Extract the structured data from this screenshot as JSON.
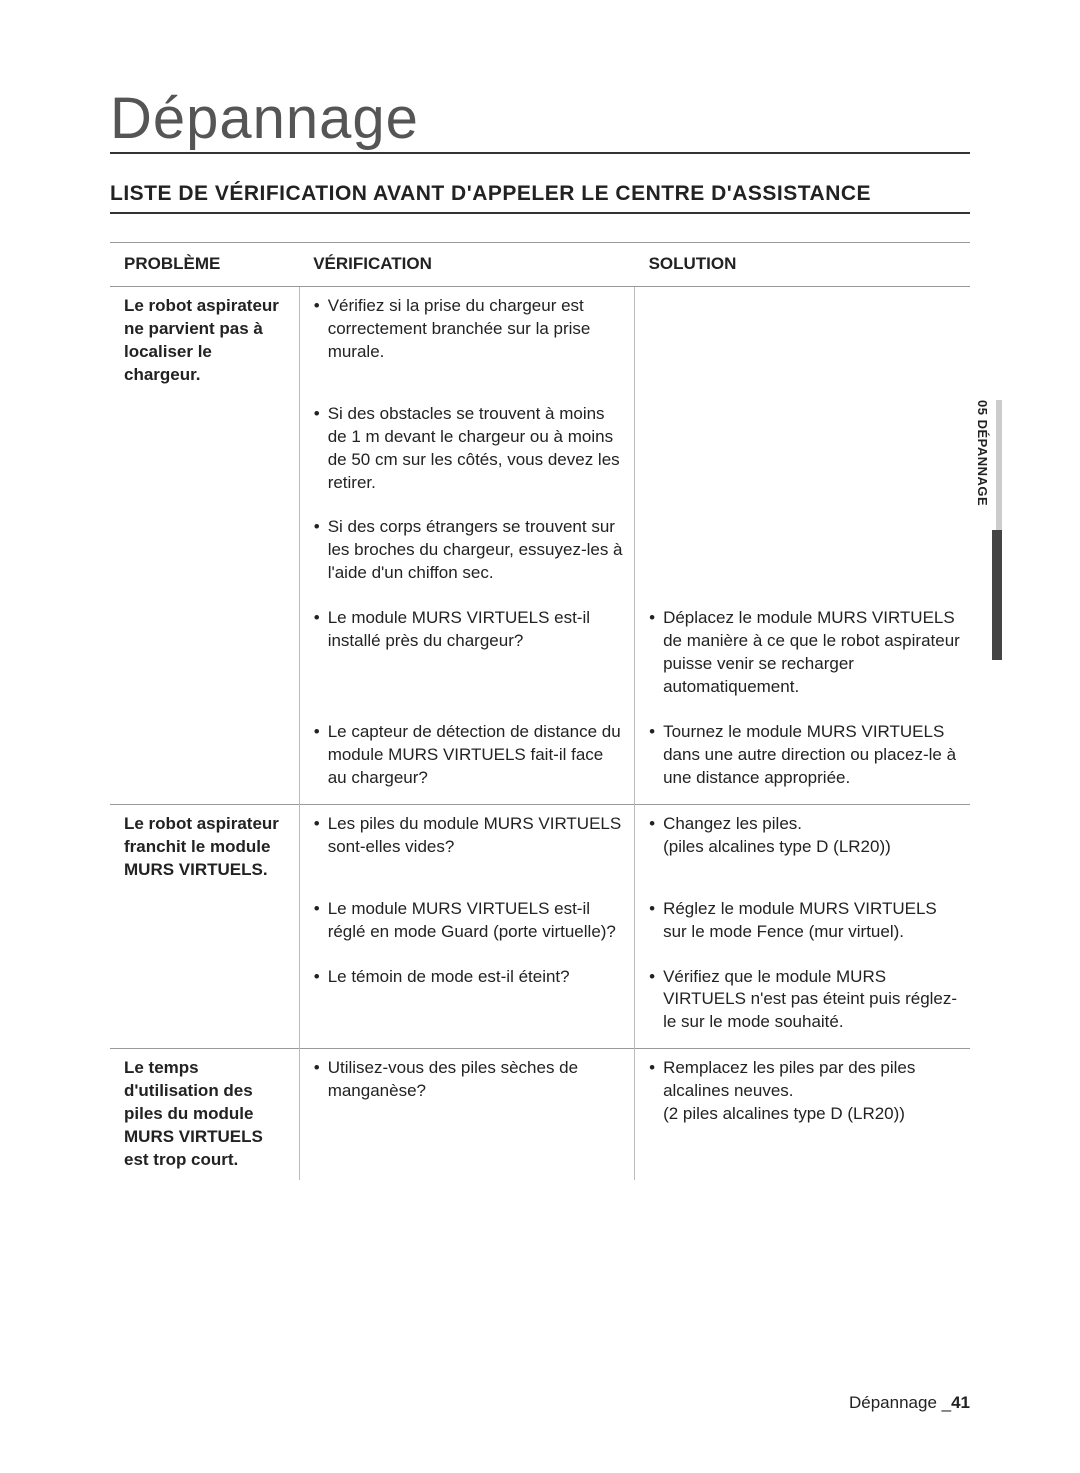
{
  "title": "Dépannage",
  "sub_heading": "LISTE DE VÉRIFICATION AVANT D'APPELER LE CENTRE D'ASSISTANCE",
  "side_tab": "05 DÉPANNAGE",
  "footer_label": "Dépannage _",
  "footer_page": "41",
  "columns": {
    "problem": "PROBLÈME",
    "verification": "VÉRIFICATION",
    "solution": "SOLUTION"
  },
  "rows": [
    {
      "problem": "Le robot aspirateur ne parvient pas à localiser le chargeur.",
      "verification": "Vérifiez si la prise du chargeur est correctement branchée sur la prise murale.",
      "solution": ""
    },
    {
      "problem": "",
      "verification": "Si des obstacles se trouvent à moins de 1 m devant le chargeur ou à moins de 50 cm sur les côtés, vous devez les retirer.",
      "solution": ""
    },
    {
      "problem": "",
      "verification": "Si des corps étrangers se trouvent sur les broches du chargeur, essuyez-les à l'aide d'un chiffon sec.",
      "solution": ""
    },
    {
      "problem": "",
      "verification": "Le module MURS VIRTUELS est-il installé près du chargeur?",
      "solution": "Déplacez le module MURS VIRTUELS de manière à ce que le robot aspirateur puisse venir se recharger automatiquement."
    },
    {
      "problem": "",
      "verification": "Le capteur de détection de distance du module MURS VIRTUELS fait-il face au chargeur?",
      "solution": "Tournez le module MURS VIRTUELS dans une autre direction ou placez-le à une distance appropriée."
    },
    {
      "problem": "Le robot aspirateur franchit le module MURS VIRTUELS.",
      "verification": "Les piles du module MURS VIRTUELS sont-elles vides?",
      "solution": "Changez les piles.\n(piles alcalines type D (LR20))"
    },
    {
      "problem": "",
      "verification": "Le module MURS VIRTUELS est-il réglé en mode Guard (porte virtuelle)?",
      "solution": "Réglez le module MURS VIRTUELS sur le mode Fence (mur virtuel)."
    },
    {
      "problem": "",
      "verification": "Le témoin de mode est-il éteint?",
      "solution": "Vérifiez que le module MURS VIRTUELS n'est pas éteint puis réglez-le sur le mode souhaité."
    },
    {
      "problem": "Le temps d'utilisation des piles du module MURS VIRTUELS est trop court.",
      "verification": "Utilisez-vous des piles sèches de manganèse?",
      "solution": "Remplacez les piles par des piles alcalines neuves.\n(2 piles alcalines type D (LR20))"
    }
  ],
  "col_widths": {
    "problem": "22%",
    "verification": "39%",
    "solution": "39%"
  },
  "group_starts": [
    0,
    5,
    8
  ]
}
